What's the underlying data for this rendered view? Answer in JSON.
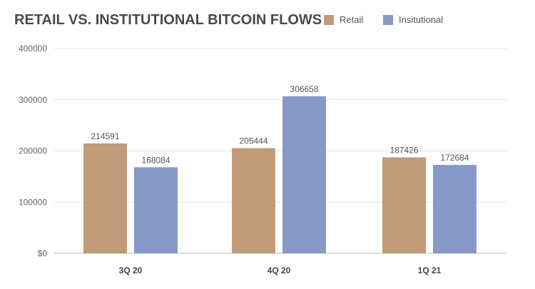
{
  "chart_data": {
    "type": "bar",
    "title": "RETAIL VS. INSTITUTIONAL BITCOIN FLOWS",
    "categories": [
      "3Q 20",
      "4Q 20",
      "1Q 21"
    ],
    "series": [
      {
        "name": "Retail",
        "values": [
          214591,
          205444,
          187426
        ],
        "color": "#c19a7a"
      },
      {
        "name": "Insitutional",
        "values": [
          168084,
          306658,
          172684
        ],
        "color": "#8799c7"
      }
    ],
    "ylim": [
      0,
      400000
    ],
    "yticks": [
      "$0",
      "100000",
      "200000",
      "300000",
      "400000"
    ],
    "ytick_values": [
      0,
      100000,
      200000,
      300000,
      400000
    ],
    "grid": true,
    "legend_position": "top-right",
    "xlabel": "",
    "ylabel": ""
  }
}
